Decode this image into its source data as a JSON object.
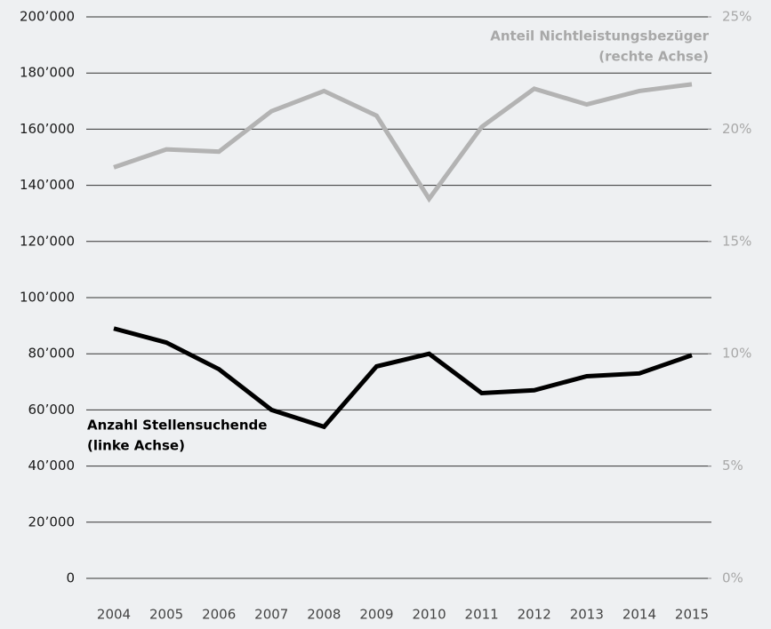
{
  "chart_data": {
    "type": "line",
    "categories": [
      "2004",
      "2005",
      "2006",
      "2007",
      "2008",
      "2009",
      "2010",
      "2011",
      "2012",
      "2013",
      "2014",
      "2015"
    ],
    "series": [
      {
        "name": "Anzahl Stellensuchende",
        "axis_note": "(linke Achse)",
        "color": "#000000",
        "values": [
          89000,
          84000,
          74500,
          60000,
          54000,
          75500,
          80000,
          66000,
          67000,
          72000,
          73000,
          79500
        ]
      },
      {
        "name": "Anteil Nichtleistungsbezüger",
        "axis_note": "(rechte Achse)",
        "color": "#b3b3b3",
        "axis": "y2",
        "values": [
          18.3,
          19.1,
          19.0,
          20.8,
          21.7,
          20.6,
          16.9,
          20.1,
          21.8,
          21.1,
          21.7,
          22.0
        ]
      }
    ],
    "ylim": [
      0,
      200000
    ],
    "yticks": [
      0,
      {
        "value": 20000,
        "label": "20’000"
      },
      {
        "value": 40000,
        "label": "40’000"
      },
      {
        "value": 60000,
        "label": "60’000"
      },
      {
        "value": 80000,
        "label": "80’000"
      },
      {
        "value": 100000,
        "label": "100’000"
      },
      {
        "value": 120000,
        "label": "120’000"
      },
      {
        "value": 140000,
        "label": "140’000"
      },
      {
        "value": 160000,
        "label": "160’000"
      },
      {
        "value": 180000,
        "label": "180’000"
      },
      {
        "value": 200000,
        "label": "200’000"
      }
    ],
    "y2lim": [
      0,
      25
    ],
    "y2ticks": [
      {
        "value": 0,
        "label": "0%"
      },
      {
        "value": 5,
        "label": "5%"
      },
      {
        "value": 10,
        "label": "10%"
      },
      {
        "value": 15,
        "label": "15%"
      },
      {
        "value": 20,
        "label": "20%"
      },
      {
        "value": 25,
        "label": "25%"
      }
    ],
    "grid": true
  }
}
